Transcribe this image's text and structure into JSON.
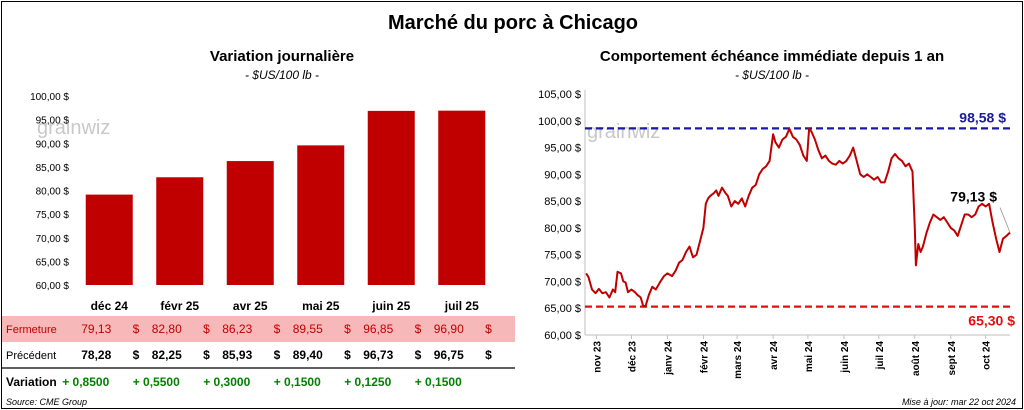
{
  "title": "Marché du porc à Chicago",
  "watermark": "grainwiz",
  "colors": {
    "bar": "#c00000",
    "line": "#c00000",
    "high": "#1a1aa0",
    "low": "#e01010",
    "positive": "#008000",
    "fermeture_bg": "#f6b8b8"
  },
  "left_chart": {
    "subtitle": "Variation journalière",
    "unit": "- $US/100 lb -",
    "chart_data": {
      "type": "bar",
      "categories": [
        "déc 24",
        "févr 25",
        "avr 25",
        "mai 25",
        "juin 25",
        "juil 25"
      ],
      "values": [
        79.13,
        82.8,
        86.23,
        89.55,
        96.85,
        96.9
      ],
      "ylim": [
        60,
        100
      ],
      "yticks": [
        "60,00 $",
        "65,00 $",
        "70,00 $",
        "75,00 $",
        "80,00 $",
        "85,00 $",
        "90,00 $",
        "95,00 $",
        "100,00 $"
      ],
      "ytick_values": [
        60,
        65,
        70,
        75,
        80,
        85,
        90,
        95,
        100
      ],
      "grid": false
    },
    "table": {
      "rows": [
        {
          "label": "Fermeture",
          "values": [
            "79,13",
            "82,80",
            "86,23",
            "89,55",
            "96,85",
            "96,90"
          ],
          "suffix": "$"
        },
        {
          "label": "Précédent",
          "values": [
            "78,28",
            "82,25",
            "85,93",
            "89,40",
            "96,73",
            "96,75"
          ],
          "suffix": "$"
        },
        {
          "label": "Variation",
          "values": [
            "+ 0,8500",
            "+ 0,5500",
            "+ 0,3000",
            "+ 0,1500",
            "+ 0,1250",
            "+ 0,1500"
          ],
          "suffix": ""
        }
      ]
    }
  },
  "right_chart": {
    "subtitle": "Comportement échéance immédiate depuis 1 an",
    "unit": "- $US/100 lb -",
    "chart_data": {
      "type": "line",
      "ylim": [
        60,
        105
      ],
      "yticks": [
        "60,00 $",
        "65,00 $",
        "70,00 $",
        "75,00 $",
        "80,00 $",
        "85,00 $",
        "90,00 $",
        "95,00 $",
        "100,00 $",
        "105,00 $"
      ],
      "ytick_values": [
        60,
        65,
        70,
        75,
        80,
        85,
        90,
        95,
        100,
        105
      ],
      "xlim": [
        "2023-10-22",
        "2024-10-22"
      ],
      "xticks": [
        {
          "label": "nov 23",
          "date": "2023-11-01"
        },
        {
          "label": "déc 23",
          "date": "2023-12-01"
        },
        {
          "label": "janv 24",
          "date": "2024-01-01"
        },
        {
          "label": "févr 24",
          "date": "2024-02-01"
        },
        {
          "label": "mars 24",
          "date": "2024-03-01"
        },
        {
          "label": "avr 24",
          "date": "2024-04-01"
        },
        {
          "label": "mai 24",
          "date": "2024-05-01"
        },
        {
          "label": "juin 24",
          "date": "2024-06-01"
        },
        {
          "label": "juil 24",
          "date": "2024-07-01"
        },
        {
          "label": "août 24",
          "date": "2024-08-01"
        },
        {
          "label": "sept 24",
          "date": "2024-09-01"
        },
        {
          "label": "oct 24",
          "date": "2024-10-01"
        }
      ],
      "series": [
        {
          "points": [
            [
              "2023-10-23",
              71.5
            ],
            [
              "2023-10-25",
              70.8
            ],
            [
              "2023-10-28",
              68.5
            ],
            [
              "2023-10-31",
              67.8
            ],
            [
              "2023-11-03",
              68.6
            ],
            [
              "2023-11-06",
              67.8
            ],
            [
              "2023-11-09",
              68.0
            ],
            [
              "2023-11-12",
              67.0
            ],
            [
              "2023-11-15",
              68.5
            ],
            [
              "2023-11-17",
              68.0
            ],
            [
              "2023-11-19",
              71.8
            ],
            [
              "2023-11-22",
              71.5
            ],
            [
              "2023-11-24",
              70.0
            ],
            [
              "2023-11-26",
              69.8
            ],
            [
              "2023-11-28",
              68.0
            ],
            [
              "2023-12-01",
              68.5
            ],
            [
              "2023-12-04",
              68.0
            ],
            [
              "2023-12-06",
              67.5
            ],
            [
              "2023-12-09",
              67.0
            ],
            [
              "2023-12-11",
              65.5
            ],
            [
              "2023-12-13",
              65.3
            ],
            [
              "2023-12-16",
              67.5
            ],
            [
              "2023-12-19",
              69.0
            ],
            [
              "2023-12-22",
              68.5
            ],
            [
              "2023-12-26",
              70.0
            ],
            [
              "2023-12-29",
              71.0
            ],
            [
              "2024-01-01",
              71.5
            ],
            [
              "2024-01-05",
              71.0
            ],
            [
              "2024-01-08",
              72.0
            ],
            [
              "2024-01-11",
              73.5
            ],
            [
              "2024-01-14",
              74.0
            ],
            [
              "2024-01-17",
              75.5
            ],
            [
              "2024-01-20",
              76.5
            ],
            [
              "2024-01-23",
              74.5
            ],
            [
              "2024-01-26",
              75.0
            ],
            [
              "2024-01-29",
              77.5
            ],
            [
              "2024-02-01",
              80.0
            ],
            [
              "2024-02-03",
              84.5
            ],
            [
              "2024-02-05",
              85.5
            ],
            [
              "2024-02-07",
              86.0
            ],
            [
              "2024-02-10",
              86.5
            ],
            [
              "2024-02-12",
              87.0
            ],
            [
              "2024-02-14",
              86.0
            ],
            [
              "2024-02-17",
              87.5
            ],
            [
              "2024-02-20",
              86.5
            ],
            [
              "2024-02-22",
              86.0
            ],
            [
              "2024-02-25",
              84.0
            ],
            [
              "2024-02-28",
              85.0
            ],
            [
              "2024-03-02",
              84.5
            ],
            [
              "2024-03-05",
              85.5
            ],
            [
              "2024-03-08",
              84.0
            ],
            [
              "2024-03-11",
              86.0
            ],
            [
              "2024-03-14",
              87.5
            ],
            [
              "2024-03-17",
              88.0
            ],
            [
              "2024-03-20",
              90.0
            ],
            [
              "2024-03-23",
              91.0
            ],
            [
              "2024-03-26",
              91.5
            ],
            [
              "2024-03-29",
              92.5
            ],
            [
              "2024-04-01",
              97.5
            ],
            [
              "2024-04-03",
              96.0
            ],
            [
              "2024-04-06",
              95.0
            ],
            [
              "2024-04-09",
              96.5
            ],
            [
              "2024-04-12",
              97.0
            ],
            [
              "2024-04-15",
              98.5
            ],
            [
              "2024-04-18",
              97.0
            ],
            [
              "2024-04-21",
              96.5
            ],
            [
              "2024-04-24",
              95.5
            ],
            [
              "2024-04-27",
              93.5
            ],
            [
              "2024-04-30",
              92.5
            ],
            [
              "2024-05-02",
              98.5
            ],
            [
              "2024-05-04",
              98.0
            ],
            [
              "2024-05-07",
              96.5
            ],
            [
              "2024-05-10",
              94.5
            ],
            [
              "2024-05-13",
              93.0
            ],
            [
              "2024-05-16",
              93.5
            ],
            [
              "2024-05-19",
              92.5
            ],
            [
              "2024-05-22",
              92.0
            ],
            [
              "2024-05-25",
              91.8
            ],
            [
              "2024-05-28",
              92.5
            ],
            [
              "2024-05-31",
              92.0
            ],
            [
              "2024-06-03",
              92.5
            ],
            [
              "2024-06-06",
              93.5
            ],
            [
              "2024-06-09",
              95.0
            ],
            [
              "2024-06-12",
              92.5
            ],
            [
              "2024-06-15",
              90.0
            ],
            [
              "2024-06-18",
              89.5
            ],
            [
              "2024-06-21",
              90.0
            ],
            [
              "2024-06-24",
              89.5
            ],
            [
              "2024-06-27",
              89.0
            ],
            [
              "2024-06-30",
              89.5
            ],
            [
              "2024-07-03",
              88.5
            ],
            [
              "2024-07-06",
              88.5
            ],
            [
              "2024-07-09",
              90.5
            ],
            [
              "2024-07-12",
              93.0
            ],
            [
              "2024-07-15",
              93.8
            ],
            [
              "2024-07-18",
              93.0
            ],
            [
              "2024-07-21",
              92.5
            ],
            [
              "2024-07-24",
              91.5
            ],
            [
              "2024-07-27",
              92.0
            ],
            [
              "2024-07-30",
              90.5
            ],
            [
              "2024-08-01",
              80.0
            ],
            [
              "2024-08-02",
              73.0
            ],
            [
              "2024-08-04",
              77.0
            ],
            [
              "2024-08-06",
              75.5
            ],
            [
              "2024-08-08",
              76.5
            ],
            [
              "2024-08-11",
              79.0
            ],
            [
              "2024-08-14",
              81.0
            ],
            [
              "2024-08-17",
              82.5
            ],
            [
              "2024-08-20",
              82.0
            ],
            [
              "2024-08-23",
              81.5
            ],
            [
              "2024-08-26",
              82.0
            ],
            [
              "2024-08-29",
              81.0
            ],
            [
              "2024-09-01",
              80.0
            ],
            [
              "2024-09-04",
              79.5
            ],
            [
              "2024-09-07",
              78.5
            ],
            [
              "2024-09-10",
              80.5
            ],
            [
              "2024-09-13",
              82.5
            ],
            [
              "2024-09-16",
              82.5
            ],
            [
              "2024-09-19",
              82.0
            ],
            [
              "2024-09-22",
              82.5
            ],
            [
              "2024-09-25",
              84.0
            ],
            [
              "2024-09-28",
              84.5
            ],
            [
              "2024-10-01",
              84.0
            ],
            [
              "2024-10-04",
              84.5
            ],
            [
              "2024-10-07",
              81.0
            ],
            [
              "2024-10-10",
              78.0
            ],
            [
              "2024-10-13",
              75.5
            ],
            [
              "2024-10-16",
              78.0
            ],
            [
              "2024-10-19",
              78.5
            ],
            [
              "2024-10-22",
              79.13
            ]
          ]
        }
      ],
      "high": {
        "value": 98.58,
        "label": "98,58 $"
      },
      "low": {
        "value": 65.3,
        "label": "65,30 $"
      },
      "last": {
        "value": 79.13,
        "label": "79,13 $"
      },
      "grid": false
    }
  },
  "footer": {
    "source": "Source: CME Group",
    "updated": "Mise à jour: mar 22 oct 2024"
  }
}
